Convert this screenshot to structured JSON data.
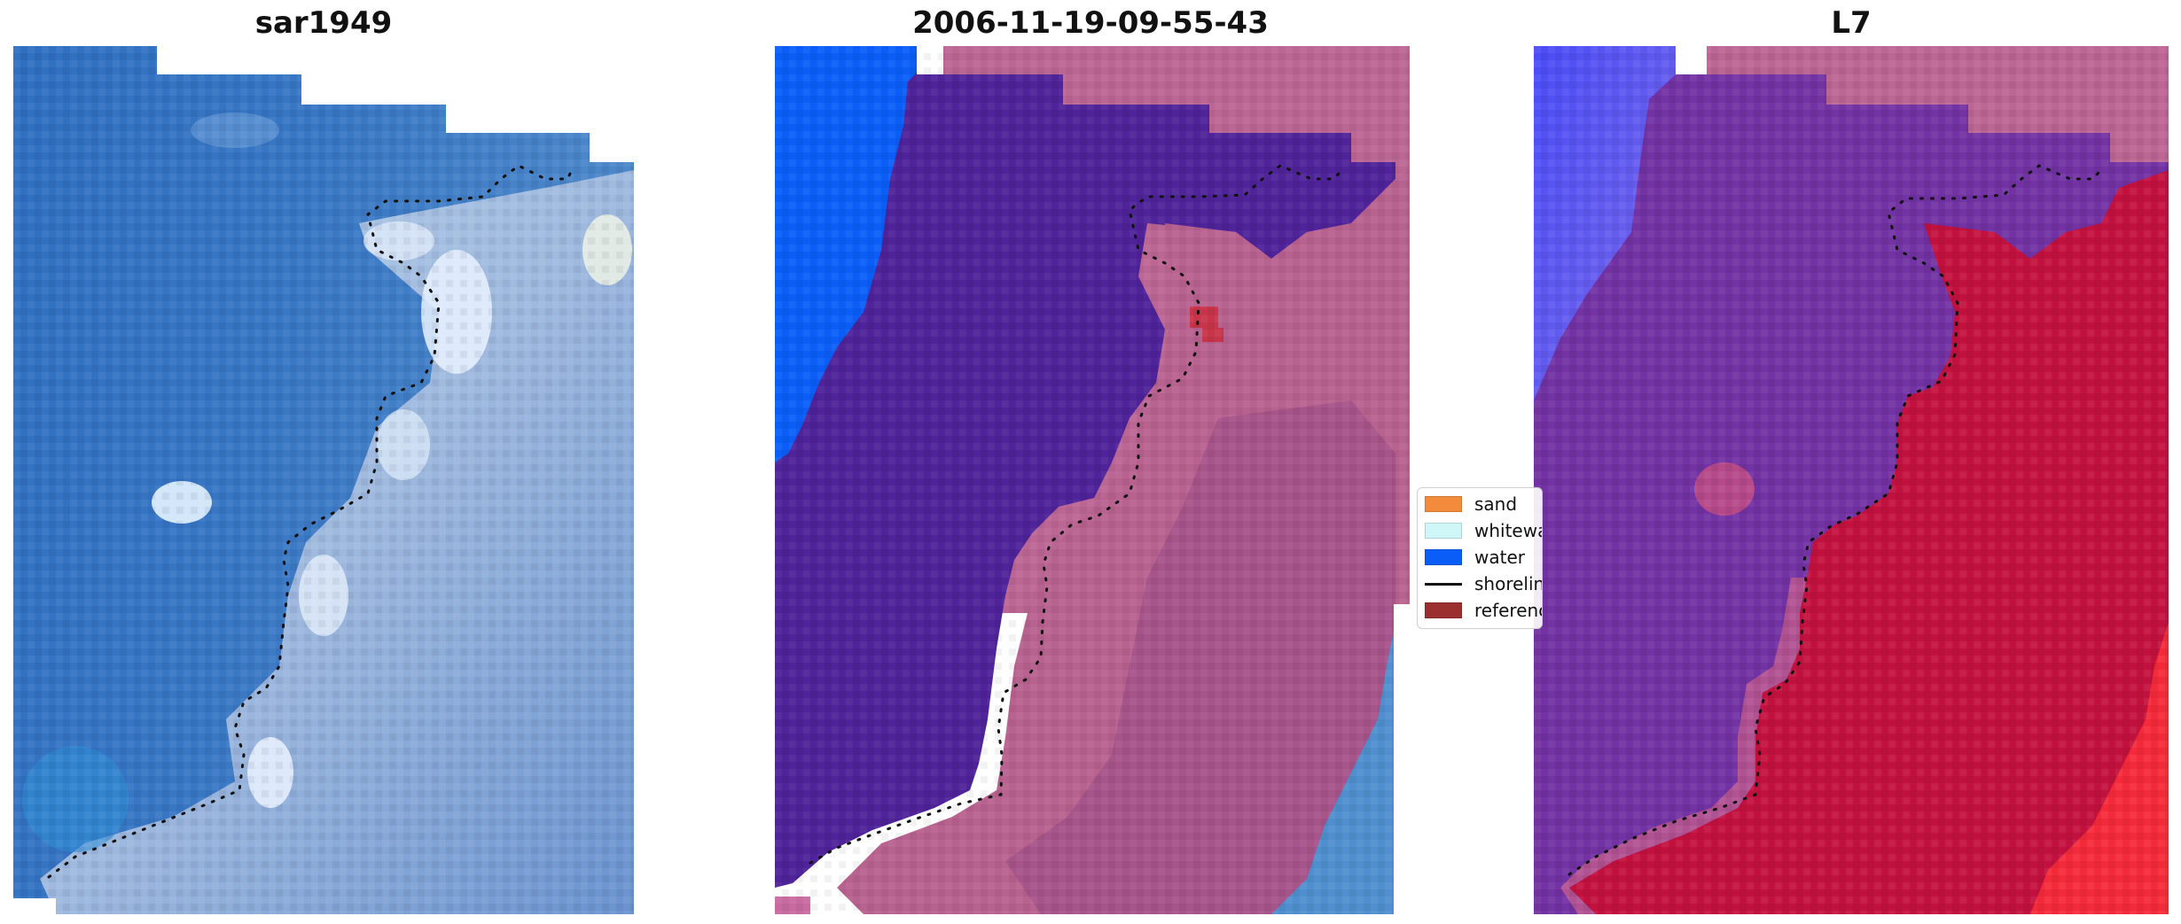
{
  "panels": [
    {
      "title": "sar1949"
    },
    {
      "title": "2006-11-19-09-55-43"
    },
    {
      "title": "L7"
    }
  ],
  "legend": {
    "items": [
      {
        "label": "sand",
        "color": "#f28c3c"
      },
      {
        "label": "whitewater",
        "color": "#cff7f7"
      },
      {
        "label": "water",
        "color": "#0a5ef7"
      },
      {
        "label": "shoreline",
        "color": "#111111"
      },
      {
        "label": "reference shoreline buffer",
        "color": "#9b2f2f"
      }
    ]
  },
  "colors": {
    "water_class": "#0a5ef7",
    "sea_overlay": "#4f239a",
    "land_overlay": "#b8628f",
    "index_water": "#5b2aa6",
    "index_land": "#c2113e",
    "index_deep": "#3535f2"
  }
}
